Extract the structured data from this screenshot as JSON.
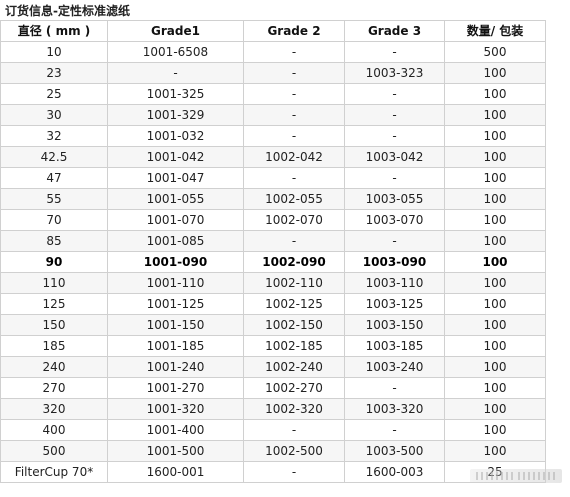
{
  "title": "订货信息-定性标准滤纸",
  "table": {
    "headers": [
      "直径 ( mm )",
      "Grade1",
      "Grade 2",
      "Grade 3",
      "数量/ 包装"
    ],
    "rows": [
      [
        "10",
        "1001-6508",
        "-",
        "-",
        "500"
      ],
      [
        "23",
        "-",
        "-",
        "1003-323",
        "100"
      ],
      [
        "25",
        "1001-325",
        "-",
        "-",
        "100"
      ],
      [
        "30",
        "1001-329",
        "-",
        "-",
        "100"
      ],
      [
        "32",
        "1001-032",
        "-",
        "-",
        "100"
      ],
      [
        "42.5",
        "1001-042",
        "1002-042",
        "1003-042",
        "100"
      ],
      [
        "47",
        "1001-047",
        "-",
        "-",
        "100"
      ],
      [
        "55",
        "1001-055",
        "1002-055",
        "1003-055",
        "100"
      ],
      [
        "70",
        "1001-070",
        "1002-070",
        "1003-070",
        "100"
      ],
      [
        "85",
        "1001-085",
        "-",
        "-",
        "100"
      ],
      [
        "90",
        "1001-090",
        "1002-090",
        "1003-090",
        "100"
      ],
      [
        "110",
        "1001-110",
        "1002-110",
        "1003-110",
        "100"
      ],
      [
        "125",
        "1001-125",
        "1002-125",
        "1003-125",
        "100"
      ],
      [
        "150",
        "1001-150",
        "1002-150",
        "1003-150",
        "100"
      ],
      [
        "185",
        "1001-185",
        "1002-185",
        "1003-185",
        "100"
      ],
      [
        "240",
        "1001-240",
        "1002-240",
        "1003-240",
        "100"
      ],
      [
        "270",
        "1001-270",
        "1002-270",
        "-",
        "100"
      ],
      [
        "320",
        "1001-320",
        "1002-320",
        "1003-320",
        "100"
      ],
      [
        "400",
        "1001-400",
        "-",
        "-",
        "100"
      ],
      [
        "500",
        "1001-500",
        "1002-500",
        "1003-500",
        "100"
      ],
      [
        "FilterCup 70*",
        "1600-001",
        "-",
        "1600-003",
        "25"
      ]
    ],
    "bold_rows": [
      10
    ]
  }
}
